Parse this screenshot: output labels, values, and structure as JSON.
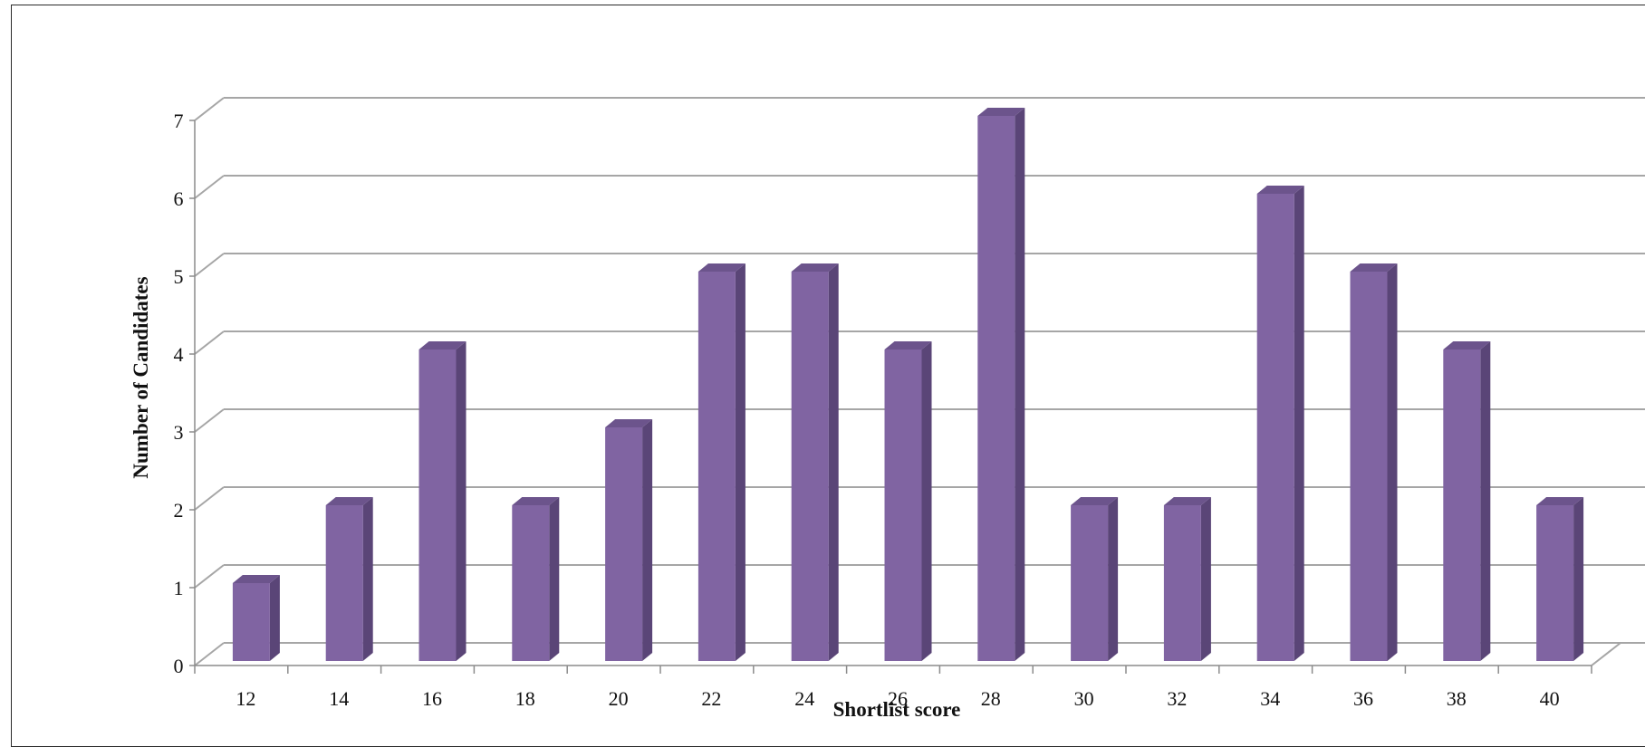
{
  "chart_data": {
    "type": "bar",
    "title": "",
    "xlabel": "Shortlist score",
    "ylabel": "Number of Candidates",
    "categories": [
      "12",
      "14",
      "16",
      "18",
      "20",
      "22",
      "24",
      "26",
      "28",
      "30",
      "32",
      "34",
      "36",
      "38",
      "40"
    ],
    "values": [
      1,
      2,
      4,
      2,
      3,
      5,
      5,
      4,
      7,
      2,
      2,
      6,
      5,
      4,
      2
    ],
    "ylim": [
      0,
      7
    ],
    "yticks": [
      0,
      1,
      2,
      3,
      4,
      5,
      6,
      7
    ],
    "grid": true,
    "legend": "none",
    "colors": {
      "bar_front": "#8064A2",
      "bar_side": "#5A4577",
      "bar_top": "#6C548C",
      "grid": "#A6A6A6",
      "axis": "#8C8C8C"
    }
  }
}
